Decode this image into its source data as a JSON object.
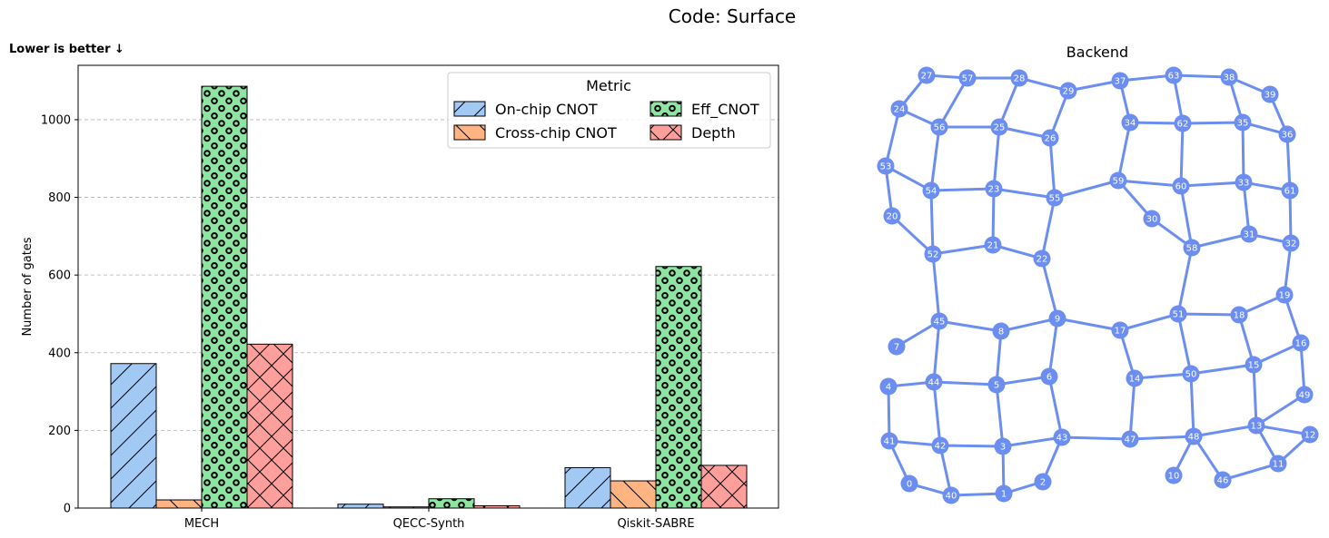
{
  "figure": {
    "suptitle": "Code: Surface",
    "note": "Lower is better ↓"
  },
  "chart_data": [
    {
      "type": "bar",
      "title": "",
      "xlabel": "",
      "ylabel": "Number of gates",
      "ylim": [
        0,
        1140
      ],
      "yticks": [
        0,
        200,
        400,
        600,
        800,
        1000
      ],
      "grid": "y-dashed",
      "categories": [
        "MECH",
        "QECC-Synth",
        "Qiskit-SABRE"
      ],
      "legend": {
        "title": "Metric",
        "placement": "top-right",
        "columns": 2
      },
      "series": [
        {
          "name": "On-chip CNOT",
          "color": "#a1c9f4",
          "hatch": "diagonal",
          "values": [
            372,
            10,
            104
          ]
        },
        {
          "name": "Cross-chip CNOT",
          "color": "#ffb482",
          "hatch": "back-diagonal",
          "values": [
            21,
            3,
            70
          ]
        },
        {
          "name": "Eff_CNOT",
          "color": "#8de5a1",
          "hatch": "circles",
          "values": [
            1086,
            24,
            622
          ]
        },
        {
          "name": "Depth",
          "color": "#ff9f9b",
          "hatch": "crosshatch",
          "values": [
            422,
            6,
            110
          ]
        }
      ]
    },
    {
      "type": "network",
      "title": "Backend",
      "node_color": "#6b8ef0",
      "edge_color": "#6b8ef0",
      "nodes": [
        "0",
        "1",
        "2",
        "3",
        "4",
        "5",
        "6",
        "7",
        "8",
        "9",
        "10",
        "11",
        "12",
        "13",
        "14",
        "15",
        "16",
        "17",
        "18",
        "19",
        "20",
        "21",
        "22",
        "23",
        "24",
        "25",
        "26",
        "27",
        "28",
        "29",
        "30",
        "31",
        "32",
        "33",
        "34",
        "35",
        "36",
        "37",
        "38",
        "39",
        "40",
        "41",
        "42",
        "43",
        "44",
        "45",
        "46",
        "47",
        "48",
        "49",
        "50",
        "51",
        "52",
        "53",
        "54",
        "55",
        "56",
        "57",
        "58",
        "59",
        "60",
        "61",
        "62",
        "63"
      ],
      "edges": [
        [
          "27",
          "57"
        ],
        [
          "57",
          "28"
        ],
        [
          "28",
          "29"
        ],
        [
          "29",
          "37"
        ],
        [
          "37",
          "63"
        ],
        [
          "63",
          "38"
        ],
        [
          "38",
          "39"
        ],
        [
          "27",
          "24"
        ],
        [
          "24",
          "56"
        ],
        [
          "24",
          "53"
        ],
        [
          "57",
          "56"
        ],
        [
          "28",
          "25"
        ],
        [
          "29",
          "26"
        ],
        [
          "56",
          "25"
        ],
        [
          "25",
          "26"
        ],
        [
          "56",
          "54"
        ],
        [
          "25",
          "23"
        ],
        [
          "26",
          "55"
        ],
        [
          "53",
          "54"
        ],
        [
          "53",
          "20"
        ],
        [
          "54",
          "23"
        ],
        [
          "23",
          "55"
        ],
        [
          "55",
          "59"
        ],
        [
          "54",
          "52"
        ],
        [
          "23",
          "21"
        ],
        [
          "55",
          "22"
        ],
        [
          "20",
          "52"
        ],
        [
          "52",
          "21"
        ],
        [
          "21",
          "22"
        ],
        [
          "22",
          "9"
        ],
        [
          "52",
          "45"
        ],
        [
          "37",
          "34"
        ],
        [
          "63",
          "62"
        ],
        [
          "38",
          "35"
        ],
        [
          "39",
          "36"
        ],
        [
          "34",
          "62"
        ],
        [
          "62",
          "35"
        ],
        [
          "35",
          "36"
        ],
        [
          "34",
          "59"
        ],
        [
          "62",
          "60"
        ],
        [
          "35",
          "33"
        ],
        [
          "36",
          "61"
        ],
        [
          "59",
          "60"
        ],
        [
          "60",
          "33"
        ],
        [
          "33",
          "61"
        ],
        [
          "59",
          "30"
        ],
        [
          "60",
          "58"
        ],
        [
          "33",
          "31"
        ],
        [
          "61",
          "32"
        ],
        [
          "30",
          "58"
        ],
        [
          "58",
          "31"
        ],
        [
          "31",
          "32"
        ],
        [
          "58",
          "51"
        ],
        [
          "32",
          "19"
        ],
        [
          "45",
          "8"
        ],
        [
          "8",
          "9"
        ],
        [
          "9",
          "17"
        ],
        [
          "17",
          "51"
        ],
        [
          "51",
          "18"
        ],
        [
          "18",
          "19"
        ],
        [
          "45",
          "7"
        ],
        [
          "45",
          "44"
        ],
        [
          "8",
          "5"
        ],
        [
          "9",
          "6"
        ],
        [
          "17",
          "14"
        ],
        [
          "51",
          "50"
        ],
        [
          "18",
          "15"
        ],
        [
          "19",
          "16"
        ],
        [
          "4",
          "44"
        ],
        [
          "44",
          "5"
        ],
        [
          "5",
          "6"
        ],
        [
          "14",
          "50"
        ],
        [
          "50",
          "15"
        ],
        [
          "15",
          "16"
        ],
        [
          "4",
          "41"
        ],
        [
          "44",
          "42"
        ],
        [
          "5",
          "3"
        ],
        [
          "6",
          "43"
        ],
        [
          "14",
          "47"
        ],
        [
          "50",
          "48"
        ],
        [
          "15",
          "13"
        ],
        [
          "16",
          "49"
        ],
        [
          "41",
          "42"
        ],
        [
          "42",
          "3"
        ],
        [
          "3",
          "43"
        ],
        [
          "43",
          "47"
        ],
        [
          "47",
          "48"
        ],
        [
          "48",
          "13"
        ],
        [
          "13",
          "49"
        ],
        [
          "41",
          "0"
        ],
        [
          "0",
          "40"
        ],
        [
          "42",
          "40"
        ],
        [
          "40",
          "1"
        ],
        [
          "1",
          "2"
        ],
        [
          "3",
          "1"
        ],
        [
          "2",
          "43"
        ],
        [
          "48",
          "10"
        ],
        [
          "48",
          "46"
        ],
        [
          "13",
          "11"
        ],
        [
          "46",
          "11"
        ],
        [
          "11",
          "12"
        ],
        [
          "13",
          "12"
        ]
      ]
    }
  ]
}
